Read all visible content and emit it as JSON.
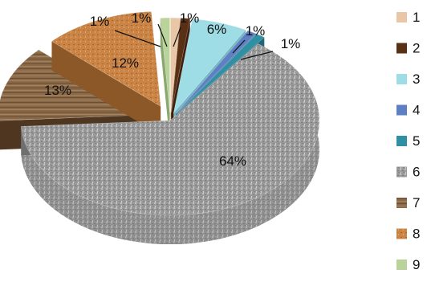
{
  "chart_data": {
    "type": "pie",
    "title": "",
    "categories": [
      "1",
      "2",
      "3",
      "4",
      "5",
      "6",
      "7",
      "8",
      "9"
    ],
    "values": [
      1,
      1,
      6,
      1,
      1,
      64,
      13,
      12,
      1
    ],
    "labels": [
      "1%",
      "1%",
      "6%",
      "1%",
      "1%",
      "64%",
      "13%",
      "12%",
      "1%"
    ],
    "exploded": true,
    "style": "3d",
    "legend_position": "right",
    "colors": [
      "#e9c7a6",
      "#5a3015",
      "#9fdde6",
      "#5d80c4",
      "#2f8fa3",
      "#9c9c9c",
      "#7a5a38",
      "#c98446",
      "#b9d39a"
    ],
    "side_colors": [
      "#c8a481",
      "#3d1f0c",
      "#74b6c2",
      "#3d5a94",
      "#1f6778",
      "#6f6f6f",
      "#4e3620",
      "#8d5828",
      "#8aa86d"
    ]
  }
}
